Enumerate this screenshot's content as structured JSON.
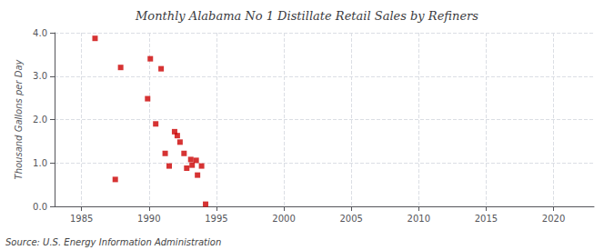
{
  "chart_data": {
    "type": "scatter",
    "title": "Monthly Alabama No 1 Distillate Retail Sales by Refiners",
    "ylabel": "Thousand Gallons per Day",
    "annotations": [
      "Source: U.S. Energy Information Administration"
    ],
    "color": "#cc0000",
    "marker": "square",
    "grid": true,
    "xlim": [
      1983,
      2023
    ],
    "ylim": [
      0.0,
      4.0
    ],
    "xticks": [
      1985,
      1990,
      1995,
      2000,
      2005,
      2010,
      2015,
      2020
    ],
    "yticks": [
      {
        "value": 0.0,
        "label": "0.0"
      },
      {
        "value": 1.0,
        "label": "1.0"
      },
      {
        "value": 2.0,
        "label": "2.0"
      },
      {
        "value": 3.0,
        "label": "3.0"
      },
      {
        "value": 4.0,
        "label": "4.0"
      }
    ],
    "x": [
      1986.0,
      1987.5,
      1987.9,
      1989.9,
      1990.1,
      1990.5,
      1990.9,
      1991.2,
      1991.5,
      1991.9,
      1992.1,
      1992.3,
      1992.6,
      1992.8,
      1993.1,
      1993.2,
      1993.5,
      1993.6,
      1993.9,
      1994.2
    ],
    "values": [
      3.87,
      0.62,
      3.2,
      2.48,
      3.4,
      1.9,
      3.17,
      1.22,
      0.93,
      1.72,
      1.63,
      1.48,
      1.22,
      0.88,
      1.08,
      0.95,
      1.06,
      0.72,
      0.93,
      0.05
    ]
  }
}
